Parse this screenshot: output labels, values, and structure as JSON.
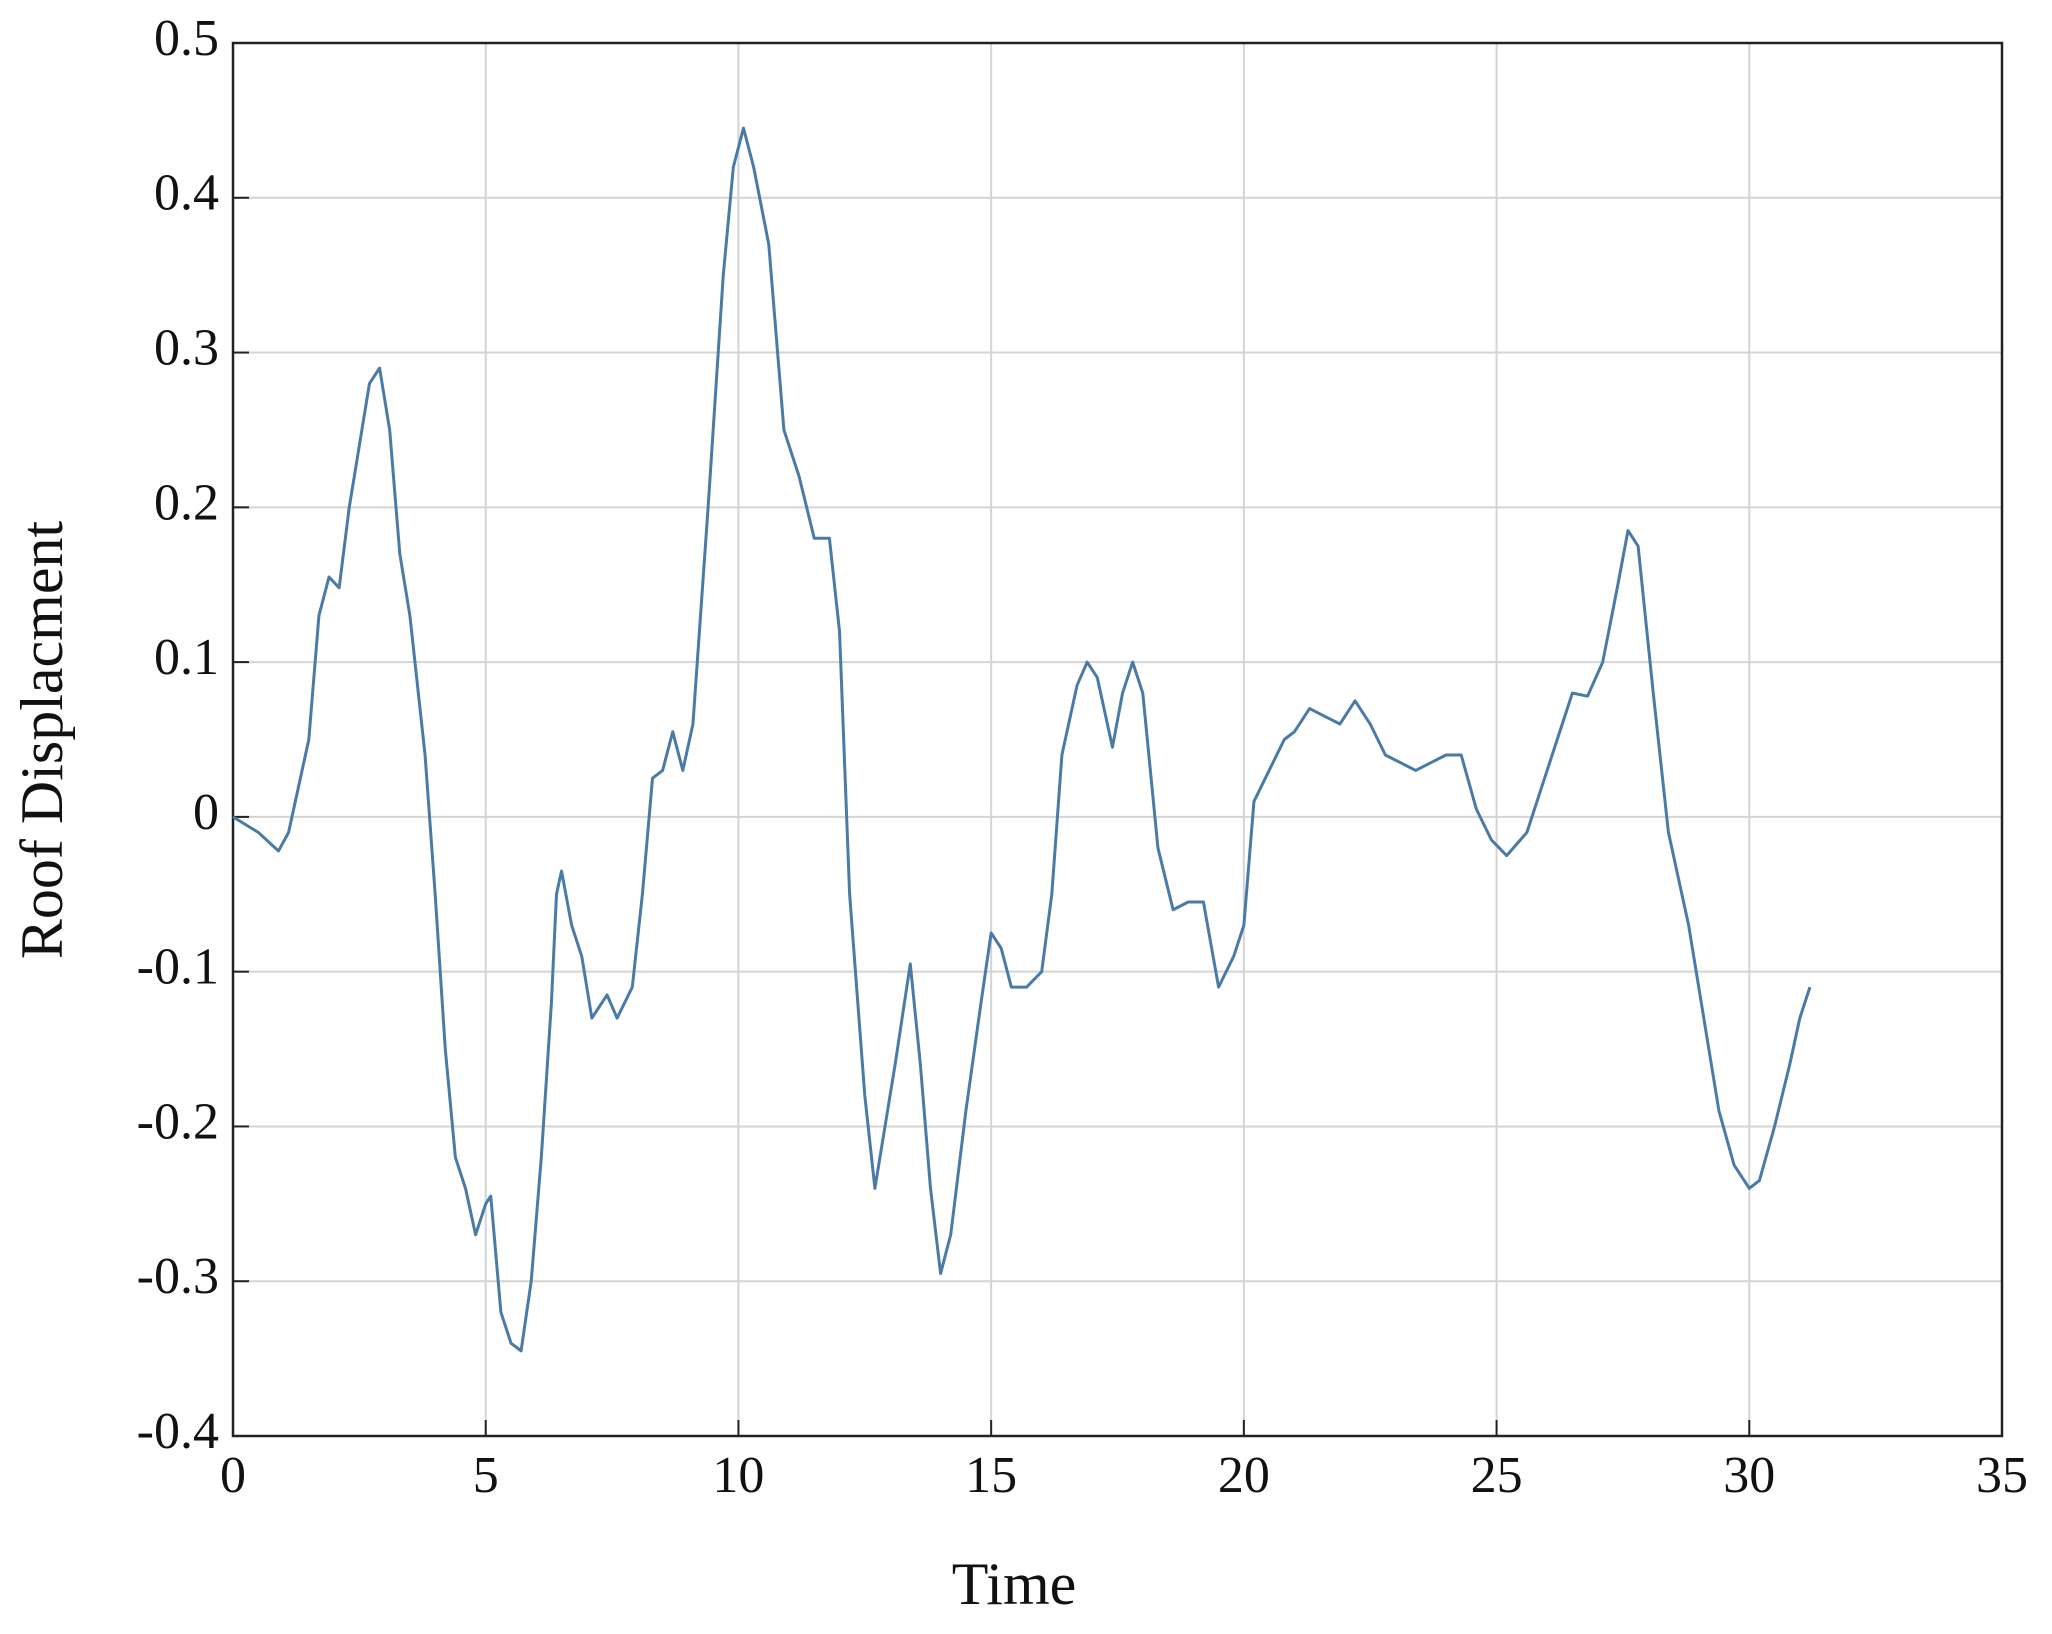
{
  "chart_data": {
    "type": "line",
    "xlabel": "Time",
    "ylabel": "Roof Displacment",
    "x": [
      0,
      0.5,
      0.9,
      1.1,
      1.3,
      1.5,
      1.7,
      1.9,
      2.1,
      2.3,
      2.5,
      2.7,
      2.9,
      3.1,
      3.3,
      3.5,
      3.8,
      4.0,
      4.2,
      4.4,
      4.6,
      4.8,
      5.0,
      5.1,
      5.3,
      5.5,
      5.7,
      5.9,
      6.1,
      6.3,
      6.4,
      6.5,
      6.7,
      6.9,
      7.1,
      7.4,
      7.6,
      7.9,
      8.1,
      8.3,
      8.5,
      8.7,
      8.9,
      9.1,
      9.4,
      9.7,
      9.9,
      10.1,
      10.3,
      10.6,
      10.9,
      11.2,
      11.5,
      11.8,
      12.0,
      12.2,
      12.5,
      12.7,
      12.9,
      13.1,
      13.4,
      13.6,
      13.8,
      14.0,
      14.2,
      14.5,
      14.8,
      15.0,
      15.2,
      15.4,
      15.7,
      16.0,
      16.2,
      16.4,
      16.7,
      16.9,
      17.1,
      17.4,
      17.6,
      17.8,
      18.0,
      18.3,
      18.6,
      18.9,
      19.2,
      19.5,
      19.8,
      20.0,
      20.2,
      20.5,
      20.8,
      21.0,
      21.3,
      21.6,
      21.9,
      22.2,
      22.5,
      22.8,
      23.1,
      23.4,
      23.7,
      24.0,
      24.3,
      24.6,
      24.9,
      25.2,
      25.6,
      25.9,
      26.2,
      26.5,
      26.8,
      27.1,
      27.4,
      27.6,
      27.8,
      28.1,
      28.4,
      28.8,
      29.1,
      29.4,
      29.7,
      30.0,
      30.2,
      30.5,
      30.8,
      31.0,
      31.2
    ],
    "series": [
      {
        "color": "#4a7ba6",
        "values": [
          0,
          -0.01,
          -0.022,
          -0.01,
          0.02,
          0.05,
          0.13,
          0.155,
          0.148,
          0.2,
          0.24,
          0.28,
          0.29,
          0.25,
          0.17,
          0.13,
          0.04,
          -0.05,
          -0.15,
          -0.22,
          -0.24,
          -0.27,
          -0.25,
          -0.245,
          -0.32,
          -0.34,
          -0.345,
          -0.3,
          -0.22,
          -0.12,
          -0.05,
          -0.035,
          -0.07,
          -0.09,
          -0.13,
          -0.115,
          -0.13,
          -0.11,
          -0.05,
          0.025,
          0.03,
          0.055,
          0.03,
          0.06,
          0.2,
          0.35,
          0.42,
          0.445,
          0.42,
          0.37,
          0.25,
          0.22,
          0.18,
          0.18,
          0.12,
          -0.05,
          -0.18,
          -0.24,
          -0.2,
          -0.16,
          -0.095,
          -0.16,
          -0.24,
          -0.295,
          -0.27,
          -0.19,
          -0.12,
          -0.075,
          -0.085,
          -0.11,
          -0.11,
          -0.1,
          -0.05,
          0.04,
          0.085,
          0.1,
          0.09,
          0.045,
          0.08,
          0.1,
          0.08,
          -0.02,
          -0.06,
          -0.055,
          -0.055,
          -0.11,
          -0.09,
          -0.07,
          0.01,
          0.03,
          0.05,
          0.055,
          0.07,
          0.065,
          0.06,
          0.075,
          0.06,
          0.04,
          0.035,
          0.03,
          0.035,
          0.04,
          0.04,
          0.005,
          -0.015,
          -0.025,
          -0.01,
          0.02,
          0.05,
          0.08,
          0.078,
          0.1,
          0.15,
          0.185,
          0.175,
          0.08,
          -0.01,
          -0.07,
          -0.13,
          -0.19,
          -0.225,
          -0.24,
          -0.235,
          -0.2,
          -0.16,
          -0.13,
          -0.11
        ]
      }
    ],
    "xlim": [
      0,
      35
    ],
    "xticks": [
      0,
      5,
      10,
      15,
      20,
      25,
      30,
      35
    ],
    "ylim": [
      -0.4,
      0.5
    ],
    "yticks": [
      -0.4,
      -0.3,
      -0.2,
      -0.1,
      0,
      0.1,
      0.2,
      0.3,
      0.4,
      0.5
    ],
    "grid": true
  }
}
